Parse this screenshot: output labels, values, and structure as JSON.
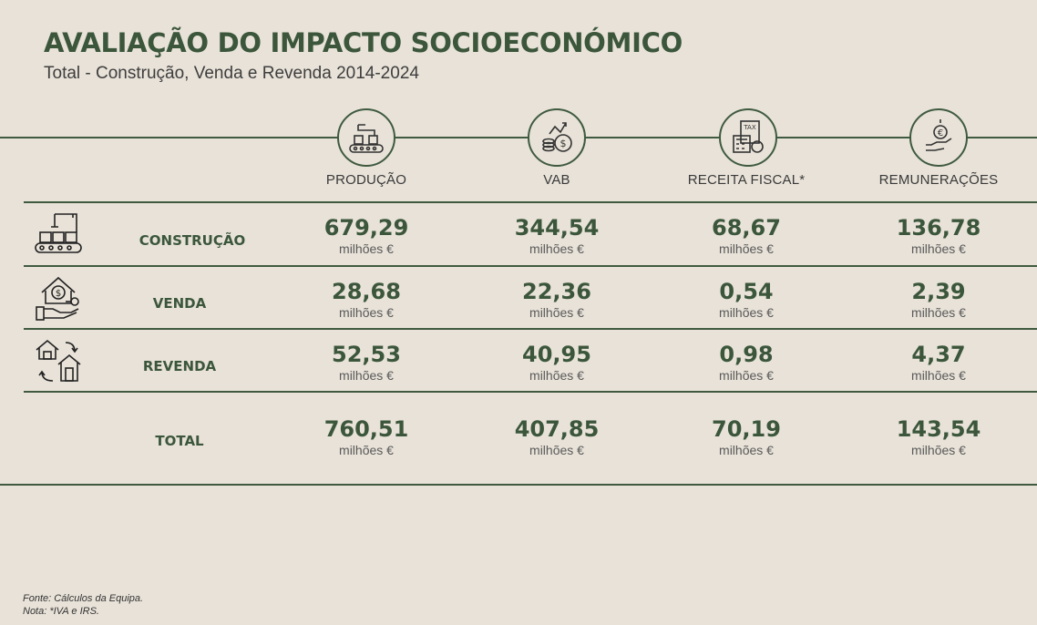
{
  "title": "AVALIAÇÃO DO IMPACTO SOCIOECONÓMICO",
  "subtitle": "Total - Construção, Venda e Revenda 2014-2024",
  "columns": [
    {
      "label": "PRODUÇÃO",
      "icon": "production-line-icon"
    },
    {
      "label": "VAB",
      "icon": "money-growth-icon"
    },
    {
      "label": "RECEITA FISCAL*",
      "icon": "tax-calculator-icon"
    },
    {
      "label": "REMUNERAÇÕES",
      "icon": "euro-hand-icon"
    }
  ],
  "unit": "milhões €",
  "rows": [
    {
      "label": "CONSTRUÇÃO",
      "icon": "construction-icon",
      "values": [
        "679,29",
        "344,54",
        "68,67",
        "136,78"
      ]
    },
    {
      "label": "VENDA",
      "icon": "house-sale-icon",
      "values": [
        "28,68",
        "22,36",
        "0,54",
        "2,39"
      ]
    },
    {
      "label": "REVENDA",
      "icon": "house-resale-icon",
      "values": [
        "52,53",
        "40,95",
        "0,98",
        "4,37"
      ]
    },
    {
      "label": "TOTAL",
      "icon": "",
      "values": [
        "760,51",
        "407,85",
        "70,19",
        "143,54"
      ]
    }
  ],
  "footer": {
    "source": "Fonte: Cálculos da Equipa.",
    "note": "Nota: *IVA e IRS."
  },
  "colors": {
    "background": "#e8e2d8",
    "accent": "#3b563b"
  }
}
